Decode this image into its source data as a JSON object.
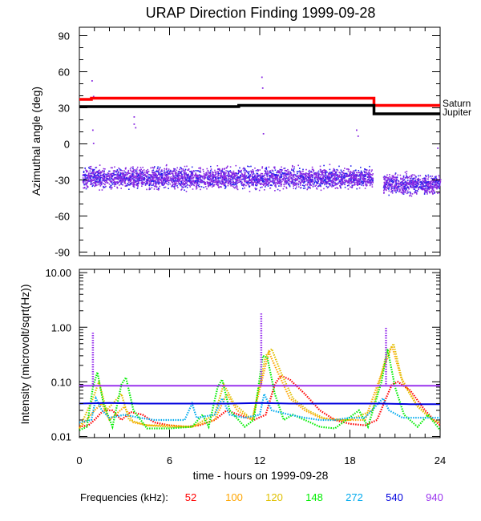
{
  "title": "URAP Direction Finding  1999-09-28",
  "chart_data": [
    {
      "type": "scatter",
      "ylabel": "Azimuthal angle (deg)",
      "ylim": [
        -93,
        97
      ],
      "yticks": [
        "90",
        "60",
        "30",
        "0",
        "-30",
        "-60",
        "-90"
      ],
      "yticks_values": [
        90,
        60,
        30,
        0,
        -30,
        -60,
        -90
      ],
      "xlim": [
        0,
        24
      ],
      "reference_lines": [
        {
          "name": "Saturn",
          "color": "#ff0000",
          "segments": [
            {
              "x": [
                0,
                0.8
              ],
              "y": 37
            },
            {
              "x": [
                0.8,
                19.6
              ],
              "y": 38
            },
            {
              "x": [
                19.6,
                24
              ],
              "y": 32
            }
          ]
        },
        {
          "name": "Jupiter",
          "color": "#000000",
          "segments": [
            {
              "x": [
                0,
                10.6
              ],
              "y": 31
            },
            {
              "x": [
                10.6,
                19.6
              ],
              "y": 32
            },
            {
              "x": [
                19.6,
                24
              ],
              "y": 25
            }
          ]
        }
      ],
      "scatter_band": {
        "color": "#8a2be2",
        "segments": [
          {
            "x": [
              0.2,
              19.5
            ],
            "y_center": -28,
            "spread": 12
          },
          {
            "x": [
              20.2,
              24
            ],
            "y_center": -33,
            "spread": 12
          }
        ]
      },
      "outliers": [
        {
          "x": 0.8,
          "y": 53
        },
        {
          "x": 0.9,
          "y": 40
        },
        {
          "x": 0.85,
          "y": 12
        },
        {
          "x": 0.9,
          "y": 1
        },
        {
          "x": 3.6,
          "y": 23
        },
        {
          "x": 3.6,
          "y": 17
        },
        {
          "x": 3.7,
          "y": 14
        },
        {
          "x": 12.1,
          "y": 56
        },
        {
          "x": 12.15,
          "y": 47
        },
        {
          "x": 12.2,
          "y": 9
        },
        {
          "x": 18.4,
          "y": 12
        },
        {
          "x": 18.5,
          "y": 7
        },
        {
          "x": 23.8,
          "y": -3
        }
      ]
    },
    {
      "type": "line",
      "ylabel": "Intensity (microvolt/sqrt(Hz))",
      "xlabel": "time - hours on 1999-09-28",
      "ylog": true,
      "ylim": [
        0.0095,
        11.5
      ],
      "yticks": [
        "10.00",
        "1.00",
        "0.10",
        "0.01"
      ],
      "yticks_values": [
        10,
        1,
        0.1,
        0.01
      ],
      "xlim": [
        0,
        24
      ],
      "xticks": [
        "0",
        "6",
        "12",
        "18",
        "24"
      ],
      "xticks_values": [
        0,
        6,
        12,
        18,
        24
      ],
      "legend_label": "Frequencies (kHz):",
      "series": [
        {
          "name": "52",
          "color": "#ff0000",
          "points": [
            [
              0,
              0.015
            ],
            [
              0.6,
              0.016
            ],
            [
              1.0,
              0.02
            ],
            [
              1.6,
              0.03
            ],
            [
              2.2,
              0.03
            ],
            [
              2.8,
              0.02
            ],
            [
              3.4,
              0.028
            ],
            [
              4.2,
              0.025
            ],
            [
              5.0,
              0.018
            ],
            [
              6.0,
              0.016
            ],
            [
              7.0,
              0.015
            ],
            [
              8.0,
              0.016
            ],
            [
              9.0,
              0.02
            ],
            [
              9.8,
              0.03
            ],
            [
              10.6,
              0.025
            ],
            [
              11.6,
              0.02
            ],
            [
              12.4,
              0.025
            ],
            [
              13.0,
              0.09
            ],
            [
              13.4,
              0.13
            ],
            [
              14.0,
              0.11
            ],
            [
              15.0,
              0.06
            ],
            [
              16.0,
              0.03
            ],
            [
              17.0,
              0.02
            ],
            [
              18.0,
              0.017
            ],
            [
              19.0,
              0.016
            ],
            [
              19.8,
              0.02
            ],
            [
              20.4,
              0.05
            ],
            [
              20.8,
              0.09
            ],
            [
              21.2,
              0.1
            ],
            [
              22.0,
              0.07
            ],
            [
              23.0,
              0.03
            ],
            [
              23.6,
              0.02
            ],
            [
              24,
              0.016
            ]
          ]
        },
        {
          "name": "100",
          "color": "#ffa500",
          "points": [
            [
              0,
              0.014
            ],
            [
              1.0,
              0.03
            ],
            [
              1.5,
              0.04
            ],
            [
              2.0,
              0.02
            ],
            [
              3.0,
              0.035
            ],
            [
              3.6,
              0.018
            ],
            [
              4.5,
              0.016
            ],
            [
              6.0,
              0.016
            ],
            [
              7.5,
              0.015
            ],
            [
              9.0,
              0.02
            ],
            [
              9.8,
              0.06
            ],
            [
              10.5,
              0.03
            ],
            [
              11.5,
              0.02
            ],
            [
              12.6,
              0.35
            ],
            [
              13.2,
              0.15
            ],
            [
              14.0,
              0.05
            ],
            [
              15.0,
              0.03
            ],
            [
              16.0,
              0.022
            ],
            [
              17.5,
              0.02
            ],
            [
              19.0,
              0.02
            ],
            [
              20.3,
              0.2
            ],
            [
              20.8,
              0.45
            ],
            [
              21.4,
              0.12
            ],
            [
              22.4,
              0.04
            ],
            [
              23.5,
              0.02
            ],
            [
              24,
              0.018
            ]
          ]
        },
        {
          "name": "120",
          "color": "#e0c000",
          "points": [
            [
              0,
              0.014
            ],
            [
              0.9,
              0.05
            ],
            [
              1.3,
              0.1
            ],
            [
              1.8,
              0.03
            ],
            [
              2.8,
              0.06
            ],
            [
              3.3,
              0.02
            ],
            [
              4.5,
              0.016
            ],
            [
              6.0,
              0.015
            ],
            [
              7.5,
              0.015
            ],
            [
              9.0,
              0.025
            ],
            [
              9.6,
              0.09
            ],
            [
              10.3,
              0.04
            ],
            [
              11.5,
              0.02
            ],
            [
              12.4,
              0.3
            ],
            [
              12.8,
              0.4
            ],
            [
              13.4,
              0.15
            ],
            [
              14.2,
              0.05
            ],
            [
              15.2,
              0.03
            ],
            [
              16.5,
              0.02
            ],
            [
              18.0,
              0.02
            ],
            [
              19.5,
              0.03
            ],
            [
              20.4,
              0.3
            ],
            [
              20.9,
              0.5
            ],
            [
              21.5,
              0.1
            ],
            [
              22.5,
              0.035
            ],
            [
              23.5,
              0.02
            ],
            [
              24,
              0.018
            ]
          ]
        },
        {
          "name": "148",
          "color": "#00ee00",
          "points": [
            [
              0,
              0.013
            ],
            [
              0.5,
              0.015
            ],
            [
              0.9,
              0.08
            ],
            [
              1.2,
              0.15
            ],
            [
              1.6,
              0.04
            ],
            [
              2.2,
              0.015
            ],
            [
              2.8,
              0.09
            ],
            [
              3.1,
              0.12
            ],
            [
              3.6,
              0.03
            ],
            [
              4.5,
              0.014
            ],
            [
              6.0,
              0.014
            ],
            [
              7.5,
              0.015
            ],
            [
              8.2,
              0.025
            ],
            [
              8.6,
              0.015
            ],
            [
              9.2,
              0.08
            ],
            [
              9.5,
              0.11
            ],
            [
              10.0,
              0.03
            ],
            [
              11.0,
              0.015
            ],
            [
              11.6,
              0.02
            ],
            [
              12.2,
              0.3
            ],
            [
              12.5,
              0.28
            ],
            [
              13.0,
              0.06
            ],
            [
              13.6,
              0.02
            ],
            [
              14.2,
              0.025
            ],
            [
              15.0,
              0.02
            ],
            [
              16.0,
              0.015
            ],
            [
              17.0,
              0.014
            ],
            [
              18.6,
              0.03
            ],
            [
              19.2,
              0.015
            ],
            [
              20.1,
              0.1
            ],
            [
              20.5,
              0.4
            ],
            [
              21.0,
              0.08
            ],
            [
              21.6,
              0.025
            ],
            [
              22.5,
              0.015
            ],
            [
              23.2,
              0.025
            ],
            [
              24,
              0.013
            ]
          ]
        },
        {
          "name": "272",
          "color": "#00aaee",
          "points": [
            [
              0,
              0.018
            ],
            [
              0.8,
              0.02
            ],
            [
              1.1,
              0.05
            ],
            [
              1.5,
              0.03
            ],
            [
              2.0,
              0.022
            ],
            [
              3.0,
              0.025
            ],
            [
              4.0,
              0.022
            ],
            [
              5.0,
              0.02
            ],
            [
              6.0,
              0.02
            ],
            [
              7.0,
              0.02
            ],
            [
              7.5,
              0.04
            ],
            [
              7.8,
              0.022
            ],
            [
              9.0,
              0.025
            ],
            [
              9.5,
              0.05
            ],
            [
              10.0,
              0.025
            ],
            [
              11.0,
              0.022
            ],
            [
              12.0,
              0.025
            ],
            [
              12.3,
              0.06
            ],
            [
              12.8,
              0.03
            ],
            [
              14.0,
              0.025
            ],
            [
              15.0,
              0.022
            ],
            [
              16.0,
              0.02
            ],
            [
              17.0,
              0.02
            ],
            [
              18.0,
              0.022
            ],
            [
              19.0,
              0.022
            ],
            [
              20.2,
              0.05
            ],
            [
              20.6,
              0.03
            ],
            [
              21.5,
              0.022
            ],
            [
              22.5,
              0.022
            ],
            [
              23.5,
              0.022
            ],
            [
              24,
              0.022
            ]
          ]
        },
        {
          "name": "540",
          "color": "#0000dd",
          "points": [
            [
              0,
              0.04
            ],
            [
              2,
              0.041
            ],
            [
              4,
              0.04
            ],
            [
              6,
              0.04
            ],
            [
              8,
              0.04
            ],
            [
              10,
              0.04
            ],
            [
              12,
              0.041
            ],
            [
              14,
              0.04
            ],
            [
              16,
              0.04
            ],
            [
              18,
              0.04
            ],
            [
              20,
              0.04
            ],
            [
              22,
              0.039
            ],
            [
              24,
              0.039
            ]
          ]
        },
        {
          "name": "940",
          "color": "#9933ee",
          "points": [
            [
              0,
              0.085
            ],
            [
              2,
              0.085
            ],
            [
              4,
              0.085
            ],
            [
              6,
              0.085
            ],
            [
              8,
              0.085
            ],
            [
              10,
              0.085
            ],
            [
              12,
              0.085
            ],
            [
              14,
              0.085
            ],
            [
              16,
              0.085
            ],
            [
              18,
              0.085
            ],
            [
              20,
              0.085
            ],
            [
              22,
              0.085
            ],
            [
              24,
              0.085
            ]
          ]
        }
      ],
      "spikes": [
        {
          "x": 0.9,
          "peak": 0.8,
          "color": "#9933ee"
        },
        {
          "x": 12.1,
          "peak": 1.8,
          "color": "#9933ee"
        },
        {
          "x": 20.4,
          "peak": 1.0,
          "color": "#9933ee"
        }
      ]
    }
  ]
}
